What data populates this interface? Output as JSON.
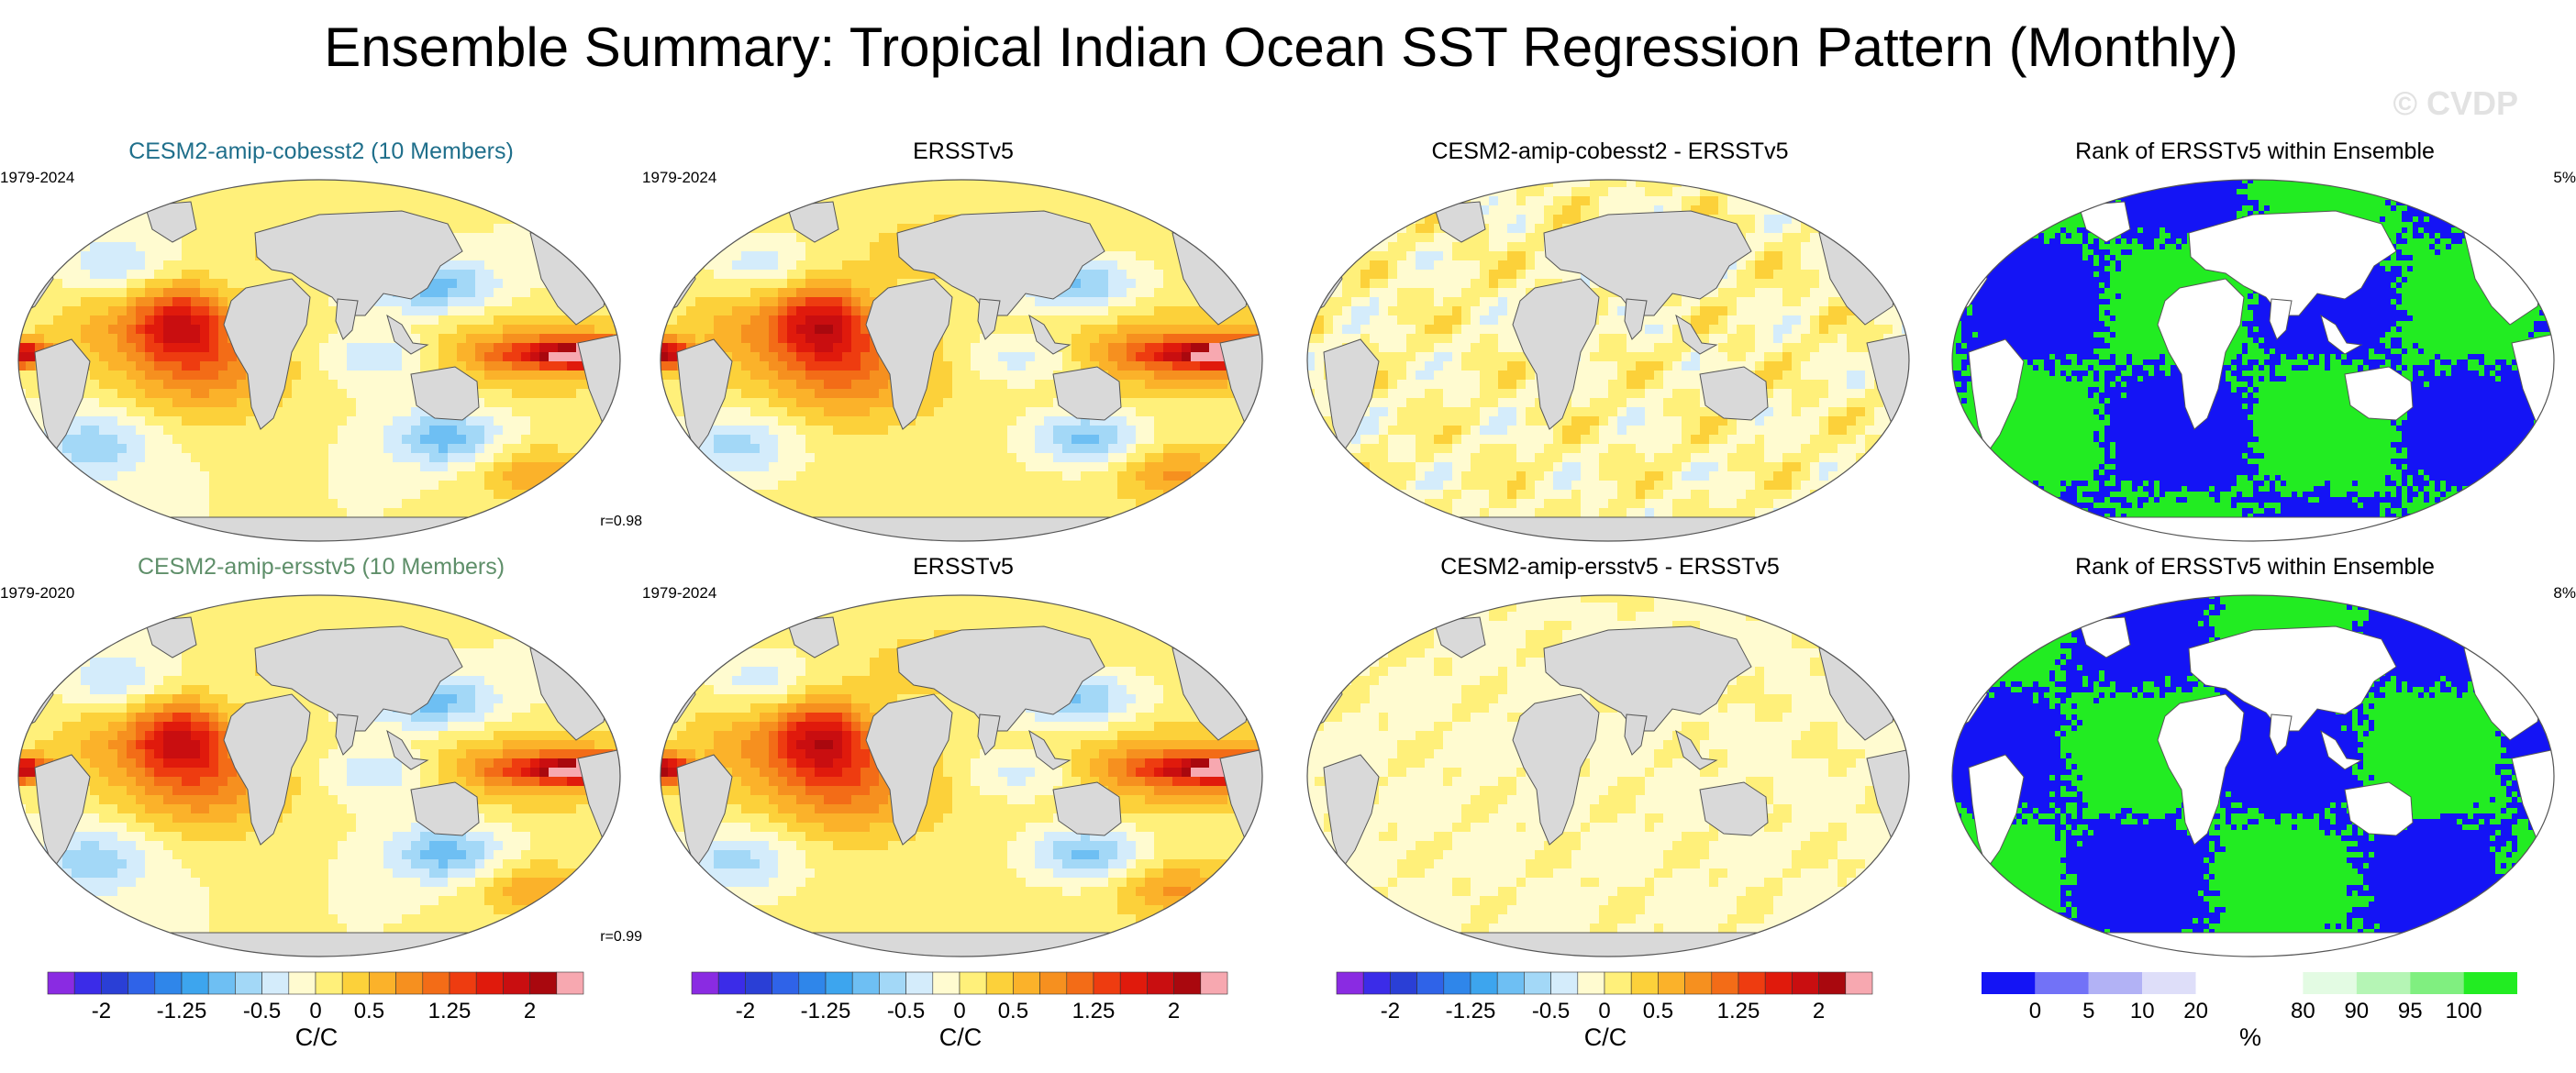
{
  "title": "Ensemble Summary: Tropical Indian Ocean SST Regression Pattern (Monthly)",
  "watermark": "© CVDP",
  "colors": {
    "ocean_bg": "#ffffff",
    "land": "#d9d9d9",
    "title_row1": "#1f6f8b",
    "title_row2": "#5f8f6a"
  },
  "panels": [
    {
      "title": "CESM2-amip-cobesst2 (10 Members)",
      "left": "1979-2024",
      "right": "",
      "corr": "r=0.98",
      "kind": "sst",
      "title_color_key": "title_row1"
    },
    {
      "title": "ERSSTv5",
      "left": "1979-2024",
      "right": "",
      "corr": "",
      "kind": "sst",
      "title_color_key": ""
    },
    {
      "title": "CESM2-amip-cobesst2 - ERSSTv5",
      "left": "",
      "right": "",
      "corr": "",
      "kind": "diff",
      "title_color_key": ""
    },
    {
      "title": "Rank of ERSSTv5 within Ensemble",
      "left": "",
      "right": "5%",
      "corr": "",
      "kind": "rank",
      "title_color_key": ""
    },
    {
      "title": "CESM2-amip-ersstv5 (10 Members)",
      "left": "1979-2020",
      "right": "",
      "corr": "r=0.99",
      "kind": "sst",
      "title_color_key": "title_row2"
    },
    {
      "title": "ERSSTv5",
      "left": "1979-2024",
      "right": "",
      "corr": "",
      "kind": "sst",
      "title_color_key": ""
    },
    {
      "title": "CESM2-amip-ersstv5 - ERSSTv5",
      "left": "",
      "right": "",
      "corr": "",
      "kind": "diff2",
      "title_color_key": ""
    },
    {
      "title": "Rank of ERSSTv5 within Ensemble",
      "left": "",
      "right": "8%",
      "corr": "",
      "kind": "rank",
      "title_color_key": ""
    }
  ],
  "colorbars": [
    {
      "unit": "C/C",
      "type": "sst"
    },
    {
      "unit": "C/C",
      "type": "sst"
    },
    {
      "unit": "C/C",
      "type": "sst"
    },
    {
      "unit": "%",
      "type": "rank"
    }
  ],
  "chart_data": {
    "type": "heatmap",
    "description_series": "Regression maps of SST onto Tropical Indian Ocean index, Robinson projection",
    "sst_scale": {
      "colors": [
        "#8a2be2",
        "#3b2ce8",
        "#2a3fd6",
        "#2f63e8",
        "#2f86ea",
        "#3da5ee",
        "#6ebff3",
        "#a3d8f7",
        "#d4ecfb",
        "#fffbd0",
        "#fff07a",
        "#fcd13a",
        "#fbb22a",
        "#f6901f",
        "#f36c17",
        "#ee3c10",
        "#e01a0c",
        "#c90e10",
        "#a9080e",
        "#f7a8b0"
      ],
      "tick_labels": [
        "-2",
        "-1.25",
        "-0.5",
        "0",
        "0.5",
        "1.25",
        "2"
      ],
      "tick_values": [
        -2,
        -1.25,
        -0.5,
        0,
        0.5,
        1.25,
        2
      ],
      "levels": [
        -2.25,
        -2,
        -1.75,
        -1.5,
        -1.25,
        -1,
        -0.75,
        -0.5,
        -0.25,
        0,
        0.25,
        0.5,
        0.75,
        1,
        1.25,
        1.5,
        1.75,
        2,
        2.25
      ]
    },
    "rank_scale": {
      "colors": [
        "#1414f5",
        "#7272f7",
        "#b2b2f5",
        "#dedef9",
        "#ffffff",
        "#ffffff",
        "#e3fbe3",
        "#b5f5b5",
        "#80ef80",
        "#22ec22"
      ],
      "tick_labels": [
        "0",
        "5",
        "10",
        "20",
        "80",
        "90",
        "95",
        "100"
      ],
      "tick_values": [
        0,
        5,
        10,
        20,
        80,
        90,
        95,
        100
      ]
    }
  }
}
